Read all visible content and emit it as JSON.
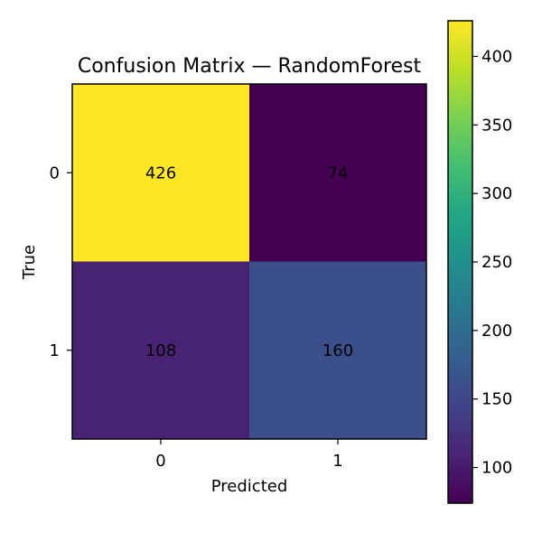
{
  "chart_data": {
    "type": "heatmap",
    "title": "Confusion Matrix — RandomForest",
    "xlabel": "Predicted",
    "ylabel": "True",
    "x_categories": [
      "0",
      "1"
    ],
    "y_categories": [
      "0",
      "1"
    ],
    "values": [
      [
        426,
        74
      ],
      [
        108,
        160
      ]
    ],
    "colormap": "viridis",
    "vmin": 74,
    "vmax": 426,
    "colorbar_ticks": [
      100,
      150,
      200,
      250,
      300,
      350,
      400
    ],
    "colorbar_tick_labels": [
      "100",
      "150",
      "200",
      "250",
      "300",
      "350",
      "400"
    ],
    "grid": false
  }
}
